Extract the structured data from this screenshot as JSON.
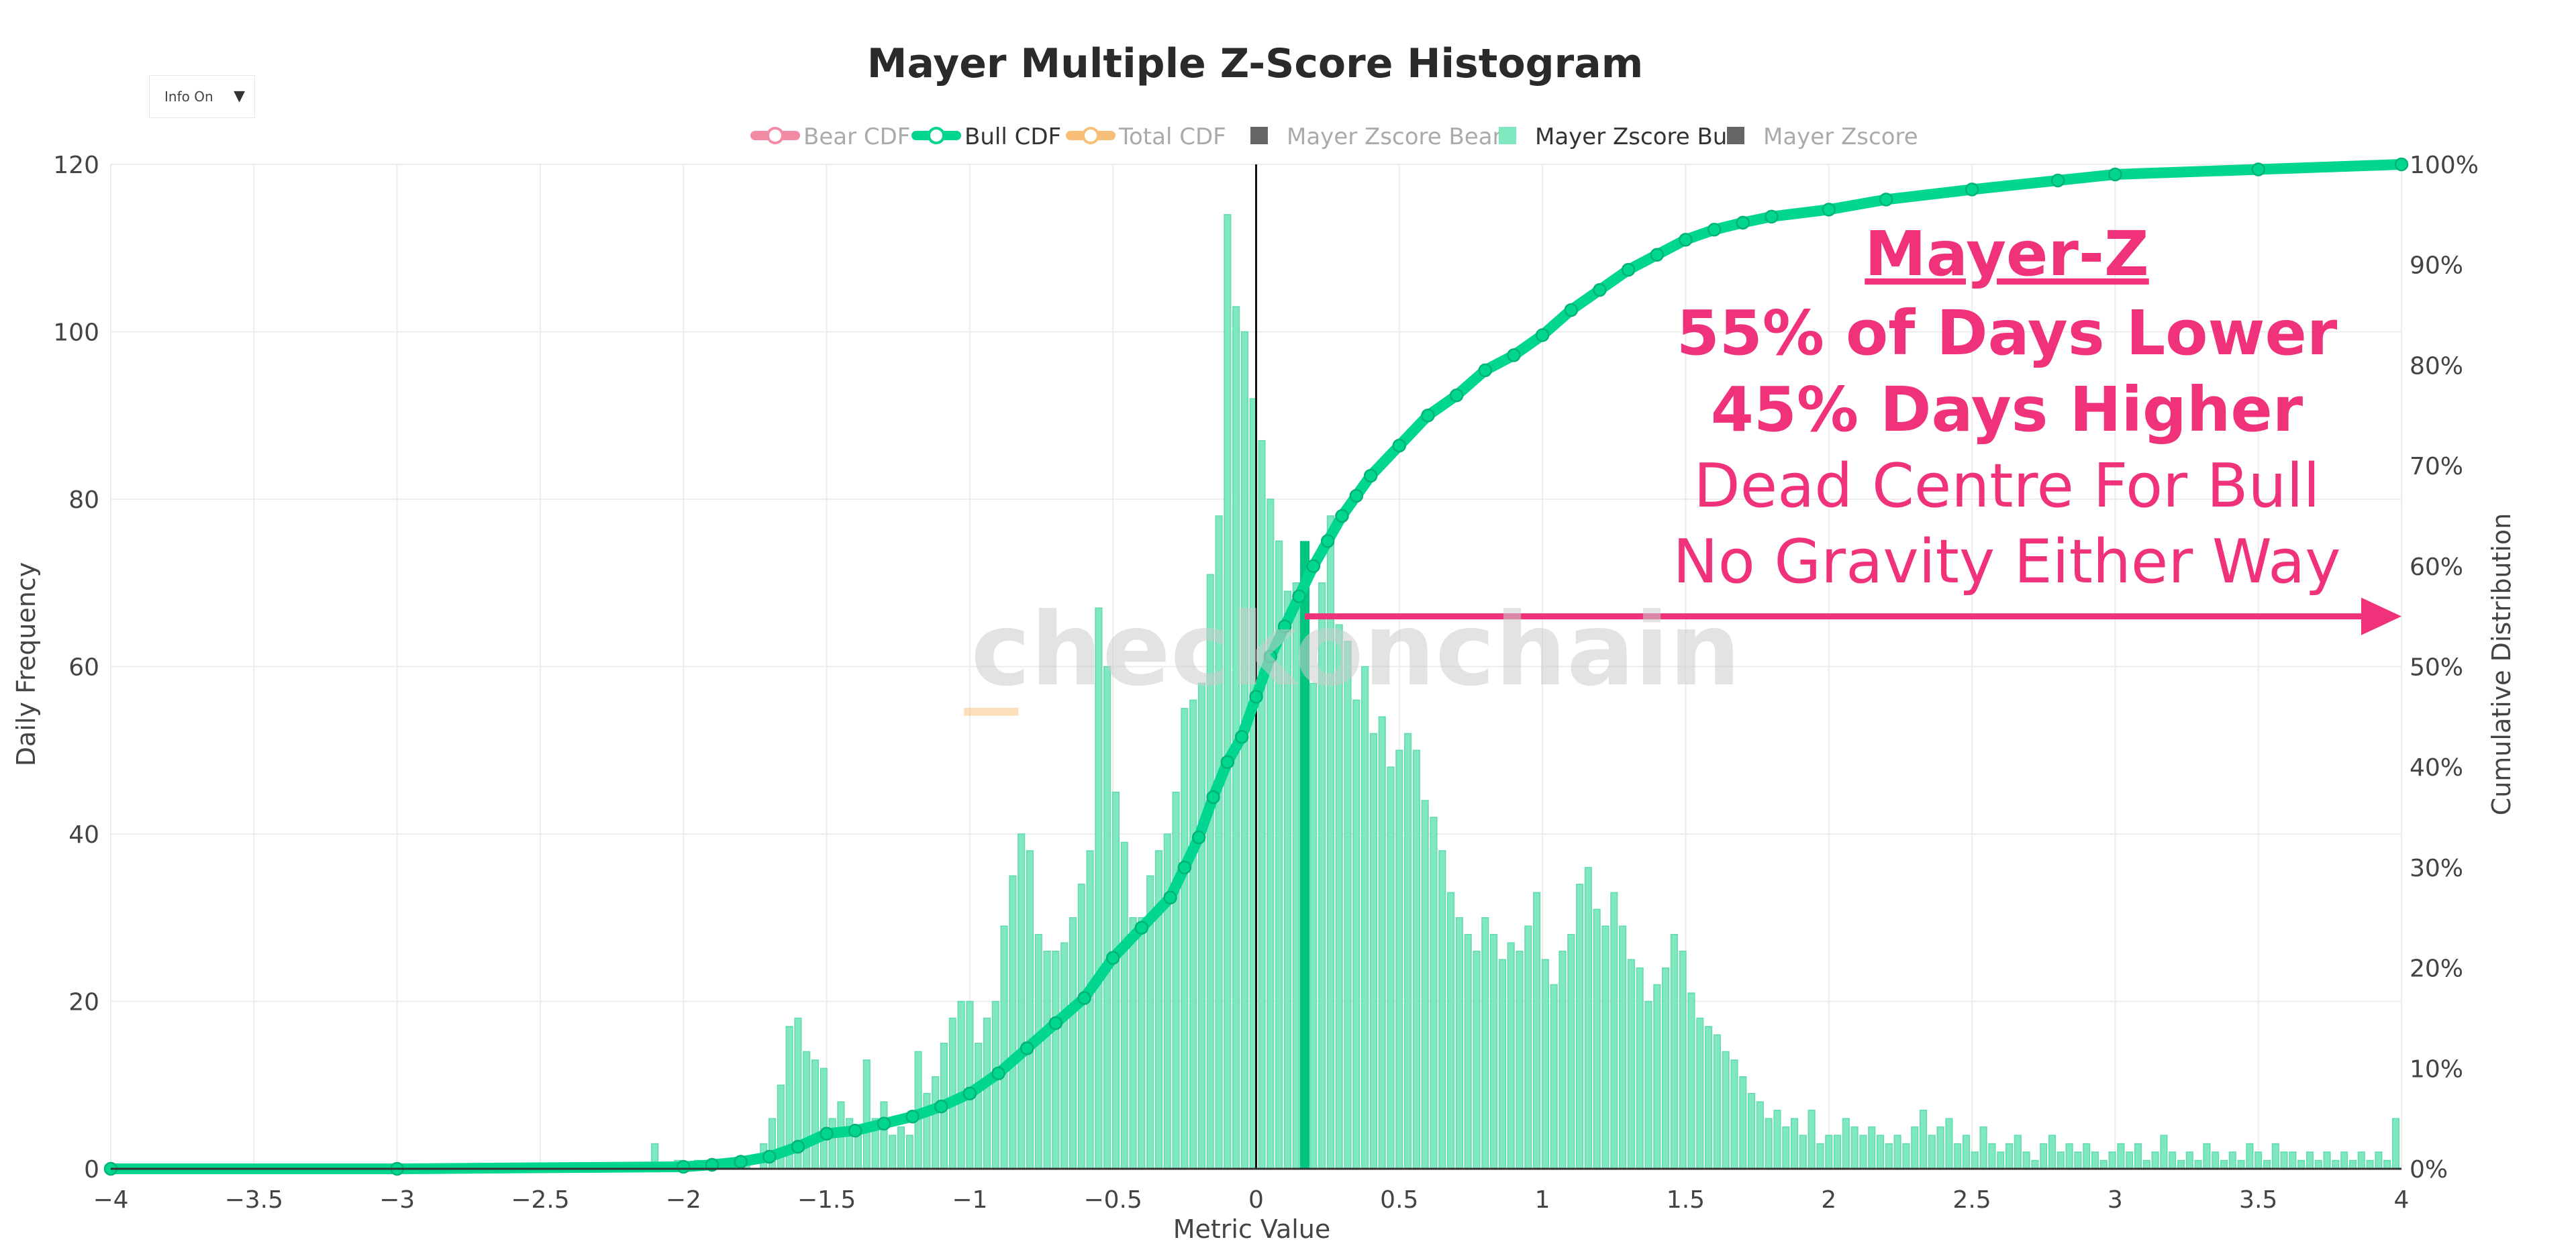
{
  "controls": {
    "info_toggle": "Info On",
    "info_caret": "▼"
  },
  "watermark": "checkonchain",
  "annotation": {
    "heading": "Mayer-Z",
    "line1": "55% of Days Lower",
    "line2": "45% Days Higher",
    "line3": "Dead Centre For Bull",
    "line4": "No Gravity Either Way"
  },
  "colors": {
    "bull": "#00d68f",
    "bull_bar": "#7fe8bf",
    "bear_cdf": "#f28ca5",
    "total_cdf": "#f7bf77",
    "bear_bar": "#666666",
    "zscore_bar": "#666666",
    "annotation": "#f0327a",
    "grid": "#ececec",
    "marker": "#00c57f"
  },
  "chart_data": {
    "type": "bar",
    "title": "Mayer Multiple Z-Score Histogram",
    "xlabel": "Metric Value",
    "ylabel": "Daily Frequency",
    "y2label": "Cumulative Distribution",
    "xlim": [
      -4,
      4
    ],
    "ylim": [
      0,
      120
    ],
    "y2lim": [
      0,
      1
    ],
    "xticks": [
      "−4",
      "−3.5",
      "−3",
      "−2.5",
      "−2",
      "−1.5",
      "−1",
      "−0.5",
      "0",
      "0.5",
      "1",
      "1.5",
      "2",
      "2.5",
      "3",
      "3.5",
      "4"
    ],
    "yticks": [
      "0",
      "20",
      "40",
      "60",
      "80",
      "100",
      "120"
    ],
    "y2ticks": [
      "0%",
      "10%",
      "20%",
      "30%",
      "40%",
      "50%",
      "60%",
      "70%",
      "80%",
      "90%",
      "100%"
    ],
    "grid": true,
    "legend_position": "top-center",
    "legend": [
      {
        "name": "Bear CDF",
        "kind": "line",
        "color": "#f28ca5",
        "active": false
      },
      {
        "name": "Bull CDF",
        "kind": "line",
        "color": "#00d68f",
        "active": true
      },
      {
        "name": "Total CDF",
        "kind": "line",
        "color": "#f7bf77",
        "active": false
      },
      {
        "name": "Mayer Zscore Bear",
        "kind": "square",
        "color": "#666666",
        "active": false
      },
      {
        "name": "Mayer Zscore Bull",
        "kind": "square",
        "color": "#7fe8bf",
        "active": true
      },
      {
        "name": "Mayer Zscore",
        "kind": "square",
        "color": "#666666",
        "active": false
      }
    ],
    "bin_width": 0.0225,
    "bull_histogram": [
      [
        -2.1,
        3
      ],
      [
        -2.02,
        1
      ],
      [
        -1.95,
        1
      ],
      [
        -1.88,
        1
      ],
      [
        -1.78,
        1
      ],
      [
        -1.72,
        3
      ],
      [
        -1.69,
        6
      ],
      [
        -1.66,
        10
      ],
      [
        -1.63,
        17
      ],
      [
        -1.6,
        18
      ],
      [
        -1.57,
        14
      ],
      [
        -1.54,
        13
      ],
      [
        -1.51,
        12
      ],
      [
        -1.48,
        6
      ],
      [
        -1.45,
        8
      ],
      [
        -1.42,
        6
      ],
      [
        -1.39,
        5
      ],
      [
        -1.36,
        13
      ],
      [
        -1.33,
        6
      ],
      [
        -1.3,
        8
      ],
      [
        -1.27,
        4
      ],
      [
        -1.24,
        5
      ],
      [
        -1.21,
        4
      ],
      [
        -1.18,
        14
      ],
      [
        -1.15,
        9
      ],
      [
        -1.12,
        11
      ],
      [
        -1.09,
        15
      ],
      [
        -1.06,
        18
      ],
      [
        -1.03,
        20
      ],
      [
        -1.0,
        20
      ],
      [
        -0.97,
        15
      ],
      [
        -0.94,
        18
      ],
      [
        -0.91,
        20
      ],
      [
        -0.88,
        29
      ],
      [
        -0.85,
        35
      ],
      [
        -0.82,
        40
      ],
      [
        -0.79,
        38
      ],
      [
        -0.76,
        28
      ],
      [
        -0.73,
        26
      ],
      [
        -0.7,
        26
      ],
      [
        -0.67,
        27
      ],
      [
        -0.64,
        30
      ],
      [
        -0.61,
        34
      ],
      [
        -0.58,
        38
      ],
      [
        -0.55,
        67
      ],
      [
        -0.52,
        60
      ],
      [
        -0.49,
        45
      ],
      [
        -0.46,
        39
      ],
      [
        -0.43,
        30
      ],
      [
        -0.4,
        30
      ],
      [
        -0.37,
        35
      ],
      [
        -0.34,
        38
      ],
      [
        -0.31,
        40
      ],
      [
        -0.28,
        45
      ],
      [
        -0.25,
        55
      ],
      [
        -0.22,
        56
      ],
      [
        -0.19,
        58
      ],
      [
        -0.16,
        71
      ],
      [
        -0.13,
        78
      ],
      [
        -0.1,
        114
      ],
      [
        -0.07,
        103
      ],
      [
        -0.04,
        100
      ],
      [
        -0.01,
        92
      ],
      [
        0.02,
        87
      ],
      [
        0.05,
        80
      ],
      [
        0.08,
        75
      ],
      [
        0.11,
        69
      ],
      [
        0.14,
        70
      ],
      [
        0.17,
        64
      ],
      [
        0.2,
        58
      ],
      [
        0.23,
        70
      ],
      [
        0.26,
        78
      ],
      [
        0.29,
        65
      ],
      [
        0.32,
        63
      ],
      [
        0.35,
        56
      ],
      [
        0.38,
        60
      ],
      [
        0.41,
        52
      ],
      [
        0.44,
        54
      ],
      [
        0.47,
        48
      ],
      [
        0.5,
        50
      ],
      [
        0.53,
        52
      ],
      [
        0.56,
        50
      ],
      [
        0.59,
        44
      ],
      [
        0.62,
        42
      ],
      [
        0.65,
        38
      ],
      [
        0.68,
        33
      ],
      [
        0.71,
        30
      ],
      [
        0.74,
        28
      ],
      [
        0.77,
        26
      ],
      [
        0.8,
        30
      ],
      [
        0.83,
        28
      ],
      [
        0.86,
        25
      ],
      [
        0.89,
        27
      ],
      [
        0.92,
        26
      ],
      [
        0.95,
        29
      ],
      [
        0.98,
        33
      ],
      [
        1.01,
        25
      ],
      [
        1.04,
        22
      ],
      [
        1.07,
        26
      ],
      [
        1.1,
        28
      ],
      [
        1.13,
        34
      ],
      [
        1.16,
        36
      ],
      [
        1.19,
        31
      ],
      [
        1.22,
        29
      ],
      [
        1.25,
        33
      ],
      [
        1.28,
        29
      ],
      [
        1.31,
        25
      ],
      [
        1.34,
        24
      ],
      [
        1.37,
        20
      ],
      [
        1.4,
        22
      ],
      [
        1.43,
        24
      ],
      [
        1.46,
        28
      ],
      [
        1.49,
        26
      ],
      [
        1.52,
        21
      ],
      [
        1.55,
        18
      ],
      [
        1.58,
        17
      ],
      [
        1.61,
        16
      ],
      [
        1.64,
        14
      ],
      [
        1.67,
        13
      ],
      [
        1.7,
        11
      ],
      [
        1.73,
        9
      ],
      [
        1.76,
        8
      ],
      [
        1.79,
        6
      ],
      [
        1.82,
        7
      ],
      [
        1.85,
        5
      ],
      [
        1.88,
        6
      ],
      [
        1.91,
        4
      ],
      [
        1.94,
        7
      ],
      [
        1.97,
        3
      ],
      [
        2.0,
        4
      ],
      [
        2.03,
        4
      ],
      [
        2.06,
        6
      ],
      [
        2.09,
        5
      ],
      [
        2.12,
        4
      ],
      [
        2.15,
        5
      ],
      [
        2.18,
        4
      ],
      [
        2.21,
        3
      ],
      [
        2.24,
        4
      ],
      [
        2.27,
        3
      ],
      [
        2.3,
        5
      ],
      [
        2.33,
        7
      ],
      [
        2.36,
        4
      ],
      [
        2.39,
        5
      ],
      [
        2.42,
        6
      ],
      [
        2.45,
        3
      ],
      [
        2.48,
        4
      ],
      [
        2.51,
        2
      ],
      [
        2.54,
        5
      ],
      [
        2.57,
        3
      ],
      [
        2.6,
        2
      ],
      [
        2.63,
        3
      ],
      [
        2.66,
        4
      ],
      [
        2.69,
        2
      ],
      [
        2.72,
        1
      ],
      [
        2.75,
        3
      ],
      [
        2.78,
        4
      ],
      [
        2.81,
        2
      ],
      [
        2.84,
        3
      ],
      [
        2.87,
        2
      ],
      [
        2.9,
        3
      ],
      [
        2.93,
        2
      ],
      [
        2.96,
        1
      ],
      [
        2.99,
        2
      ],
      [
        3.02,
        3
      ],
      [
        3.05,
        2
      ],
      [
        3.08,
        3
      ],
      [
        3.11,
        1
      ],
      [
        3.14,
        2
      ],
      [
        3.17,
        4
      ],
      [
        3.2,
        2
      ],
      [
        3.23,
        1
      ],
      [
        3.26,
        2
      ],
      [
        3.29,
        1
      ],
      [
        3.32,
        3
      ],
      [
        3.35,
        2
      ],
      [
        3.38,
        1
      ],
      [
        3.41,
        2
      ],
      [
        3.44,
        1
      ],
      [
        3.47,
        3
      ],
      [
        3.5,
        2
      ],
      [
        3.53,
        1
      ],
      [
        3.56,
        3
      ],
      [
        3.59,
        2
      ],
      [
        3.62,
        2
      ],
      [
        3.65,
        1
      ],
      [
        3.68,
        2
      ],
      [
        3.71,
        1
      ],
      [
        3.74,
        2
      ],
      [
        3.77,
        1
      ],
      [
        3.8,
        2
      ],
      [
        3.83,
        1
      ],
      [
        3.86,
        2
      ],
      [
        3.89,
        1
      ],
      [
        3.92,
        2
      ],
      [
        3.95,
        1
      ],
      [
        3.98,
        6
      ]
    ],
    "bull_cdf": [
      [
        -4.0,
        0.0
      ],
      [
        -3.0,
        0.0
      ],
      [
        -2.0,
        0.002
      ],
      [
        -1.9,
        0.004
      ],
      [
        -1.8,
        0.007
      ],
      [
        -1.7,
        0.012
      ],
      [
        -1.6,
        0.022
      ],
      [
        -1.5,
        0.035
      ],
      [
        -1.4,
        0.038
      ],
      [
        -1.3,
        0.045
      ],
      [
        -1.2,
        0.052
      ],
      [
        -1.1,
        0.062
      ],
      [
        -1.0,
        0.075
      ],
      [
        -0.9,
        0.095
      ],
      [
        -0.8,
        0.12
      ],
      [
        -0.7,
        0.145
      ],
      [
        -0.6,
        0.17
      ],
      [
        -0.5,
        0.21
      ],
      [
        -0.4,
        0.24
      ],
      [
        -0.3,
        0.27
      ],
      [
        -0.25,
        0.3
      ],
      [
        -0.2,
        0.33
      ],
      [
        -0.15,
        0.37
      ],
      [
        -0.1,
        0.405
      ],
      [
        -0.05,
        0.43
      ],
      [
        0.0,
        0.47
      ],
      [
        0.05,
        0.51
      ],
      [
        0.1,
        0.54
      ],
      [
        0.15,
        0.57
      ],
      [
        0.2,
        0.6
      ],
      [
        0.25,
        0.625
      ],
      [
        0.3,
        0.65
      ],
      [
        0.35,
        0.67
      ],
      [
        0.4,
        0.69
      ],
      [
        0.5,
        0.72
      ],
      [
        0.6,
        0.75
      ],
      [
        0.7,
        0.77
      ],
      [
        0.8,
        0.795
      ],
      [
        0.9,
        0.81
      ],
      [
        1.0,
        0.83
      ],
      [
        1.1,
        0.855
      ],
      [
        1.2,
        0.875
      ],
      [
        1.3,
        0.895
      ],
      [
        1.4,
        0.91
      ],
      [
        1.5,
        0.925
      ],
      [
        1.6,
        0.935
      ],
      [
        1.7,
        0.942
      ],
      [
        1.8,
        0.948
      ],
      [
        2.0,
        0.955
      ],
      [
        2.2,
        0.965
      ],
      [
        2.5,
        0.975
      ],
      [
        2.8,
        0.984
      ],
      [
        3.0,
        0.99
      ],
      [
        3.5,
        0.995
      ],
      [
        4.0,
        1.0
      ]
    ],
    "current_value_marker": {
      "x": 0.17,
      "y": 75
    },
    "arrow": {
      "from_x": 0.17,
      "to_x": 4.0,
      "cdf_level": 0.55
    },
    "zero_line_x": 0
  }
}
